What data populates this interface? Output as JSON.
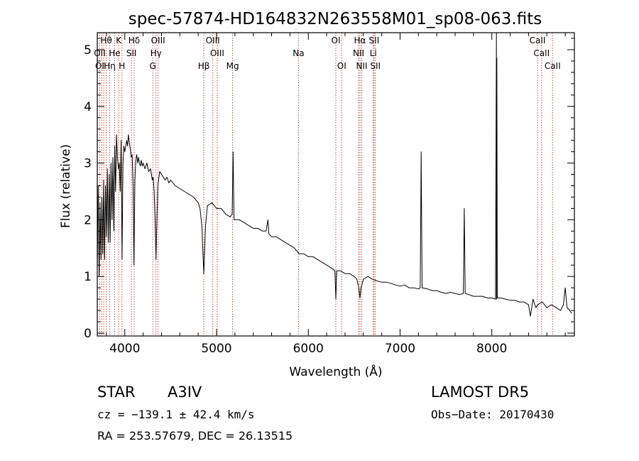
{
  "chart_data": {
    "type": "line",
    "title": "spec-57874-HD164832N263558M01_sp08-063.fits",
    "xlabel": "Wavelength (Å)",
    "ylabel": "Flux (relative)",
    "xlim": [
      3700,
      8900
    ],
    "ylim": [
      -0.05,
      5.3
    ],
    "xticks": [
      4000,
      5000,
      6000,
      7000,
      8000
    ],
    "yticks": [
      0,
      1,
      2,
      3,
      4,
      5
    ],
    "grid": false,
    "series": [
      {
        "values": [
          [
            3700,
            1.1
          ],
          [
            3710,
            2.6
          ],
          [
            3720,
            1.0
          ],
          [
            3730,
            2.3
          ],
          [
            3740,
            1.3
          ],
          [
            3750,
            2.4
          ],
          [
            3760,
            1.4
          ],
          [
            3770,
            2.7
          ],
          [
            3780,
            1.3
          ],
          [
            3790,
            2.6
          ],
          [
            3800,
            1.7
          ],
          [
            3810,
            2.9
          ],
          [
            3820,
            1.6
          ],
          [
            3830,
            2.8
          ],
          [
            3840,
            1.6
          ],
          [
            3850,
            3.0
          ],
          [
            3860,
            2.0
          ],
          [
            3870,
            3.1
          ],
          [
            3880,
            1.8
          ],
          [
            3890,
            3.3
          ],
          [
            3900,
            2.5
          ],
          [
            3910,
            3.5
          ],
          [
            3920,
            3.1
          ],
          [
            3930,
            2.9
          ],
          [
            3940,
            3.0
          ],
          [
            3950,
            2.5
          ],
          [
            3960,
            3.4
          ],
          [
            3970,
            1.3
          ],
          [
            3980,
            3.0
          ],
          [
            3990,
            3.3
          ],
          [
            4000,
            3.2
          ],
          [
            4010,
            3.3
          ],
          [
            4020,
            3.4
          ],
          [
            4030,
            3.3
          ],
          [
            4040,
            3.5
          ],
          [
            4050,
            3.35
          ],
          [
            4060,
            3.25
          ],
          [
            4070,
            3.1
          ],
          [
            4080,
            3.15
          ],
          [
            4090,
            2.6
          ],
          [
            4100,
            1.2
          ],
          [
            4110,
            2.7
          ],
          [
            4120,
            3.05
          ],
          [
            4130,
            3.15
          ],
          [
            4140,
            3.0
          ],
          [
            4150,
            3.1
          ],
          [
            4160,
            3.0
          ],
          [
            4170,
            2.95
          ],
          [
            4180,
            3.05
          ],
          [
            4190,
            2.95
          ],
          [
            4200,
            3.0
          ],
          [
            4220,
            2.9
          ],
          [
            4240,
            3.0
          ],
          [
            4260,
            2.85
          ],
          [
            4280,
            2.9
          ],
          [
            4300,
            2.7
          ],
          [
            4310,
            2.75
          ],
          [
            4320,
            2.5
          ],
          [
            4330,
            2.0
          ],
          [
            4340,
            1.3
          ],
          [
            4350,
            2.0
          ],
          [
            4360,
            2.6
          ],
          [
            4380,
            2.85
          ],
          [
            4400,
            2.8
          ],
          [
            4420,
            2.75
          ],
          [
            4440,
            2.7
          ],
          [
            4460,
            2.75
          ],
          [
            4480,
            2.65
          ],
          [
            4500,
            2.7
          ],
          [
            4550,
            2.6
          ],
          [
            4600,
            2.55
          ],
          [
            4650,
            2.5
          ],
          [
            4700,
            2.45
          ],
          [
            4750,
            2.4
          ],
          [
            4800,
            2.3
          ],
          [
            4820,
            2.2
          ],
          [
            4840,
            1.9
          ],
          [
            4861,
            1.05
          ],
          [
            4880,
            1.9
          ],
          [
            4900,
            2.25
          ],
          [
            4950,
            2.3
          ],
          [
            5000,
            2.2
          ],
          [
            5050,
            2.2
          ],
          [
            5100,
            2.1
          ],
          [
            5150,
            2.05
          ],
          [
            5170,
            2.1
          ],
          [
            5180,
            3.2
          ],
          [
            5190,
            2.0
          ],
          [
            5250,
            2.0
          ],
          [
            5300,
            1.95
          ],
          [
            5350,
            1.9
          ],
          [
            5400,
            1.85
          ],
          [
            5450,
            1.85
          ],
          [
            5500,
            1.8
          ],
          [
            5540,
            1.8
          ],
          [
            5560,
            2.0
          ],
          [
            5570,
            1.75
          ],
          [
            5600,
            1.7
          ],
          [
            5650,
            1.7
          ],
          [
            5700,
            1.65
          ],
          [
            5750,
            1.6
          ],
          [
            5800,
            1.55
          ],
          [
            5850,
            1.5
          ],
          [
            5900,
            1.4
          ],
          [
            5950,
            1.4
          ],
          [
            6000,
            1.35
          ],
          [
            6050,
            1.35
          ],
          [
            6100,
            1.3
          ],
          [
            6150,
            1.25
          ],
          [
            6200,
            1.2
          ],
          [
            6250,
            1.15
          ],
          [
            6290,
            1.1
          ],
          [
            6300,
            0.6
          ],
          [
            6310,
            1.1
          ],
          [
            6350,
            1.1
          ],
          [
            6400,
            1.05
          ],
          [
            6450,
            1.05
          ],
          [
            6500,
            1.0
          ],
          [
            6530,
            0.95
          ],
          [
            6550,
            0.8
          ],
          [
            6563,
            0.62
          ],
          [
            6575,
            0.8
          ],
          [
            6600,
            0.95
          ],
          [
            6650,
            1.0
          ],
          [
            6700,
            0.95
          ],
          [
            6750,
            0.92
          ],
          [
            6800,
            0.9
          ],
          [
            6850,
            0.9
          ],
          [
            6900,
            0.88
          ],
          [
            6950,
            0.85
          ],
          [
            7000,
            0.83
          ],
          [
            7050,
            0.85
          ],
          [
            7100,
            0.8
          ],
          [
            7150,
            0.8
          ],
          [
            7200,
            0.78
          ],
          [
            7220,
            0.8
          ],
          [
            7230,
            3.2
          ],
          [
            7240,
            0.8
          ],
          [
            7300,
            0.78
          ],
          [
            7350,
            0.75
          ],
          [
            7400,
            0.75
          ],
          [
            7450,
            0.72
          ],
          [
            7500,
            0.7
          ],
          [
            7550,
            0.72
          ],
          [
            7600,
            0.7
          ],
          [
            7650,
            0.68
          ],
          [
            7690,
            0.7
          ],
          [
            7700,
            2.2
          ],
          [
            7710,
            0.7
          ],
          [
            7750,
            0.68
          ],
          [
            7800,
            0.65
          ],
          [
            7850,
            0.65
          ],
          [
            7900,
            0.65
          ],
          [
            7950,
            0.62
          ],
          [
            8000,
            0.62
          ],
          [
            8040,
            0.6
          ],
          [
            8050,
            5.3
          ],
          [
            8052,
            0.6
          ],
          [
            8055,
            4.85
          ],
          [
            8060,
            0.62
          ],
          [
            8100,
            0.62
          ],
          [
            8150,
            0.6
          ],
          [
            8200,
            0.58
          ],
          [
            8250,
            0.58
          ],
          [
            8300,
            0.55
          ],
          [
            8350,
            0.55
          ],
          [
            8400,
            0.5
          ],
          [
            8420,
            0.3
          ],
          [
            8450,
            0.6
          ],
          [
            8480,
            0.45
          ],
          [
            8500,
            0.5
          ],
          [
            8550,
            0.55
          ],
          [
            8600,
            0.45
          ],
          [
            8650,
            0.5
          ],
          [
            8700,
            0.45
          ],
          [
            8750,
            0.4
          ],
          [
            8780,
            0.5
          ],
          [
            8800,
            0.8
          ],
          [
            8820,
            0.45
          ],
          [
            8850,
            0.4
          ],
          [
            8870,
            0.35
          ]
        ]
      }
    ],
    "line_markers": [
      {
        "label": "Hθ",
        "wl": 3798,
        "row": 0
      },
      {
        "label": "K",
        "wl": 3934,
        "row": 0
      },
      {
        "label": "Hδ",
        "wl": 4102,
        "row": 0
      },
      {
        "label": "OIII",
        "wl": 4363,
        "row": 0
      },
      {
        "label": "OIII",
        "wl": 4959,
        "row": 0
      },
      {
        "label": "OI",
        "wl": 6300,
        "row": 0
      },
      {
        "label": "Hα",
        "wl": 6563,
        "row": 0
      },
      {
        "label": "SII",
        "wl": 6717,
        "row": 0
      },
      {
        "label": "CaII",
        "wl": 8498,
        "row": 0
      },
      {
        "label": "OII",
        "wl": 3727,
        "row": 1
      },
      {
        "label": "He",
        "wl": 3889,
        "row": 1
      },
      {
        "label": "SII",
        "wl": 4072,
        "row": 1
      },
      {
        "label": "Hγ",
        "wl": 4340,
        "row": 1
      },
      {
        "label": "OIII",
        "wl": 5007,
        "row": 1
      },
      {
        "label": "Na",
        "wl": 5893,
        "row": 1
      },
      {
        "label": "NII",
        "wl": 6548,
        "row": 1
      },
      {
        "label": "Li",
        "wl": 6708,
        "row": 1
      },
      {
        "label": "CaII",
        "wl": 8542,
        "row": 1
      },
      {
        "label": "OI",
        "wl": 3727,
        "row": 2
      },
      {
        "label": "Hη",
        "wl": 3835,
        "row": 2
      },
      {
        "label": "H",
        "wl": 3969,
        "row": 2
      },
      {
        "label": "G",
        "wl": 4305,
        "row": 2
      },
      {
        "label": "Hβ",
        "wl": 4861,
        "row": 2
      },
      {
        "label": "Mg",
        "wl": 5175,
        "row": 2
      },
      {
        "label": "OI",
        "wl": 6364,
        "row": 2
      },
      {
        "label": "NII",
        "wl": 6583,
        "row": 2
      },
      {
        "label": "SII",
        "wl": 6731,
        "row": 2
      },
      {
        "label": "CaII",
        "wl": 8662,
        "row": 2
      }
    ],
    "marker_lines": [
      3727,
      3750,
      3771,
      3798,
      3835,
      3889,
      3934,
      3969,
      4072,
      4102,
      4305,
      4340,
      4363,
      4861,
      4959,
      5007,
      5175,
      5893,
      6300,
      6364,
      6548,
      6563,
      6583,
      6708,
      6717,
      6731,
      8498,
      8542,
      8662
    ]
  },
  "info": {
    "class_label": "STAR",
    "subclass": "A3IV",
    "survey": "LAMOST  DR5",
    "redshift": "cz = −139.1 ± 42.4 km/s",
    "obs_date": "Obs−Date: 20170430",
    "coords": "RA = 253.57679, DEC =  26.13515"
  },
  "colors": {
    "spectrum": "#000000",
    "marker": "#c0392b",
    "axes": "#000000",
    "background": "#ffffff"
  }
}
